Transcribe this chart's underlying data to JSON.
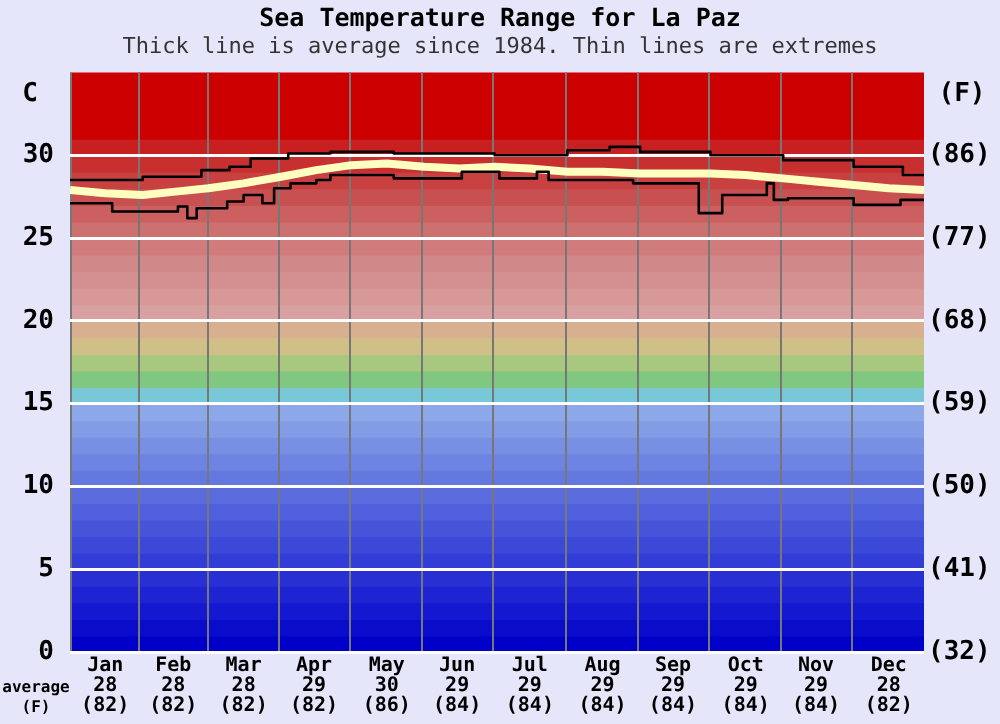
{
  "chart_data": {
    "type": "line",
    "title": "Sea Temperature Range for La Paz",
    "subtitle": "Thick line is average since 1984. Thin lines are extremes",
    "ylabel": "C",
    "y2label": "(F)",
    "annotations": [
      "average\n(F)"
    ],
    "xlim": [
      "--01-01",
      "--12-31"
    ],
    "xticks": [
      {
        "value": "--01-16",
        "label": "Jan\n28\n(82)"
      },
      {
        "value": "--02-14",
        "label": "Feb\n28\n(82)"
      },
      {
        "value": "--03-16",
        "label": "Mar\n28\n(82)"
      },
      {
        "value": "--04-15",
        "label": "Apr\n29\n(82)"
      },
      {
        "value": "--05-16",
        "label": "May\n30\n(86)"
      },
      {
        "value": "--06-15",
        "label": "Jun\n29\n(84)"
      },
      {
        "value": "--07-16",
        "label": "Jul\n29\n(84)"
      },
      {
        "value": "--08-16",
        "label": "Aug\n29\n(84)"
      },
      {
        "value": "--09-15",
        "label": "Sep\n29\n(84)"
      },
      {
        "value": "--10-16",
        "label": "Oct\n29\n(84)"
      },
      {
        "value": "--11-15",
        "label": "Nov\n29\n(84)"
      },
      {
        "value": "--12-16",
        "label": "Dec\n28\n(82)"
      }
    ],
    "ylim": [
      0,
      35
    ],
    "yticks": [
      0,
      5,
      10,
      15,
      20,
      25,
      30
    ],
    "y2lim": [
      32,
      95
    ],
    "y2ticks": [
      {
        "value": 32,
        "label": "(32)"
      },
      {
        "value": 41,
        "label": "(41)"
      },
      {
        "value": 50,
        "label": "(50)"
      },
      {
        "value": 59,
        "label": "(59)"
      },
      {
        "value": 68,
        "label": "(68)"
      },
      {
        "value": 77,
        "label": "(77)"
      },
      {
        "value": 86,
        "label": "(86)"
      }
    ],
    "grid": true,
    "legend": false,
    "bands": [
      {
        "axis": "y",
        "from": 0,
        "to": 1,
        "color": "#0000c8"
      },
      {
        "axis": "y",
        "from": 1,
        "to": 2,
        "color": "#0a0ccc"
      },
      {
        "axis": "y",
        "from": 2,
        "to": 3,
        "color": "#1418d0"
      },
      {
        "axis": "y",
        "from": 3,
        "to": 4,
        "color": "#1e24d2"
      },
      {
        "axis": "y",
        "from": 4,
        "to": 5,
        "color": "#2830d4"
      },
      {
        "axis": "y",
        "from": 5,
        "to": 6,
        "color": "#323cd6"
      },
      {
        "axis": "y",
        "from": 6,
        "to": 7,
        "color": "#3c48d8"
      },
      {
        "axis": "y",
        "from": 7,
        "to": 8,
        "color": "#4654da"
      },
      {
        "axis": "y",
        "from": 8,
        "to": 9,
        "color": "#5060dc"
      },
      {
        "axis": "y",
        "from": 9,
        "to": 10,
        "color": "#5a6cde"
      },
      {
        "axis": "y",
        "from": 10,
        "to": 11,
        "color": "#6478e0"
      },
      {
        "axis": "y",
        "from": 11,
        "to": 12,
        "color": "#6e84e2"
      },
      {
        "axis": "y",
        "from": 12,
        "to": 13,
        "color": "#7890e4"
      },
      {
        "axis": "y",
        "from": 13,
        "to": 14,
        "color": "#829ce6"
      },
      {
        "axis": "y",
        "from": 14,
        "to": 15,
        "color": "#8ca8e8"
      },
      {
        "axis": "y",
        "from": 15,
        "to": 16,
        "color": "#78c8d8"
      },
      {
        "axis": "y",
        "from": 16,
        "to": 17,
        "color": "#80c880"
      },
      {
        "axis": "y",
        "from": 17,
        "to": 18,
        "color": "#a8c880"
      },
      {
        "axis": "y",
        "from": 18,
        "to": 19,
        "color": "#d0c088"
      },
      {
        "axis": "y",
        "from": 19,
        "to": 20,
        "color": "#d8b090"
      },
      {
        "axis": "y",
        "from": 20,
        "to": 21,
        "color": "#d8a0a0"
      },
      {
        "axis": "y",
        "from": 21,
        "to": 22,
        "color": "#d89898"
      },
      {
        "axis": "y",
        "from": 22,
        "to": 23,
        "color": "#d49090"
      },
      {
        "axis": "y",
        "from": 23,
        "to": 24,
        "color": "#d08888"
      },
      {
        "axis": "y",
        "from": 24,
        "to": 25,
        "color": "#d07c7c"
      },
      {
        "axis": "y",
        "from": 25,
        "to": 26,
        "color": "#cc7070"
      },
      {
        "axis": "y",
        "from": 26,
        "to": 27,
        "color": "#cc6060"
      },
      {
        "axis": "y",
        "from": 27,
        "to": 28,
        "color": "#c85050"
      },
      {
        "axis": "y",
        "from": 28,
        "to": 29,
        "color": "#c84040"
      },
      {
        "axis": "y",
        "from": 29,
        "to": 30,
        "color": "#c83030"
      },
      {
        "axis": "y",
        "from": 30,
        "to": 31,
        "color": "#c82020"
      },
      {
        "axis": "y",
        "from": 31,
        "to": 35,
        "color": "#cc0000"
      }
    ],
    "series": [
      {
        "type": "step",
        "color": "#000000",
        "x": [
          "--01-01",
          "--02-01",
          "--02-26",
          "--03-10",
          "--03-19",
          "--04-04",
          "--04-22",
          "--05-19",
          "--07-01",
          "--08-01",
          "--08-19",
          "--09-01",
          "--10-01",
          "--11-01",
          "--12-01",
          "--12-22",
          "--12-31"
        ],
        "values": [
          28.5,
          28.7,
          29.1,
          29.3,
          29.8,
          30.1,
          30.2,
          30.1,
          30.0,
          30.3,
          30.5,
          30.2,
          30.0,
          29.7,
          29.3,
          28.8,
          28.8
        ]
      },
      {
        "type": "step",
        "color": "#000000",
        "x": [
          "--01-01",
          "--01-19",
          "--02-16",
          "--02-20",
          "--02-24",
          "--03-09",
          "--03-16",
          "--03-24",
          "--03-29",
          "--04-05",
          "--04-16",
          "--04-22",
          "--05-19",
          "--06-17",
          "--07-03",
          "--07-19",
          "--07-24",
          "--08-29",
          "--09-26",
          "--10-06",
          "--10-25",
          "--10-28",
          "--11-03",
          "--12-01",
          "--12-21",
          "--12-31"
        ],
        "values": [
          27.1,
          26.6,
          26.9,
          26.2,
          26.8,
          27.2,
          27.6,
          27.1,
          28.0,
          28.3,
          28.5,
          28.8,
          28.6,
          29.0,
          28.6,
          29.0,
          28.5,
          28.3,
          26.5,
          27.6,
          28.3,
          27.3,
          27.4,
          27.0,
          27.3,
          27.3
        ]
      },
      {
        "type": "line",
        "color": "#ffffc0",
        "x": [
          "--01-01",
          "--01-16",
          "--02-01",
          "--02-15",
          "--03-01",
          "--03-16",
          "--04-01",
          "--04-16",
          "--05-01",
          "--05-16",
          "--06-01",
          "--06-16",
          "--07-01",
          "--07-16",
          "--08-01",
          "--08-16",
          "--09-01",
          "--09-16",
          "--10-01",
          "--10-16",
          "--11-01",
          "--11-16",
          "--12-01",
          "--12-16",
          "--12-31"
        ],
        "values": [
          27.9,
          27.7,
          27.6,
          27.8,
          28.0,
          28.3,
          28.7,
          29.1,
          29.4,
          29.5,
          29.3,
          29.2,
          29.3,
          29.2,
          29.0,
          29.0,
          28.9,
          28.9,
          28.9,
          28.8,
          28.6,
          28.4,
          28.2,
          28.0,
          27.9
        ]
      }
    ]
  }
}
